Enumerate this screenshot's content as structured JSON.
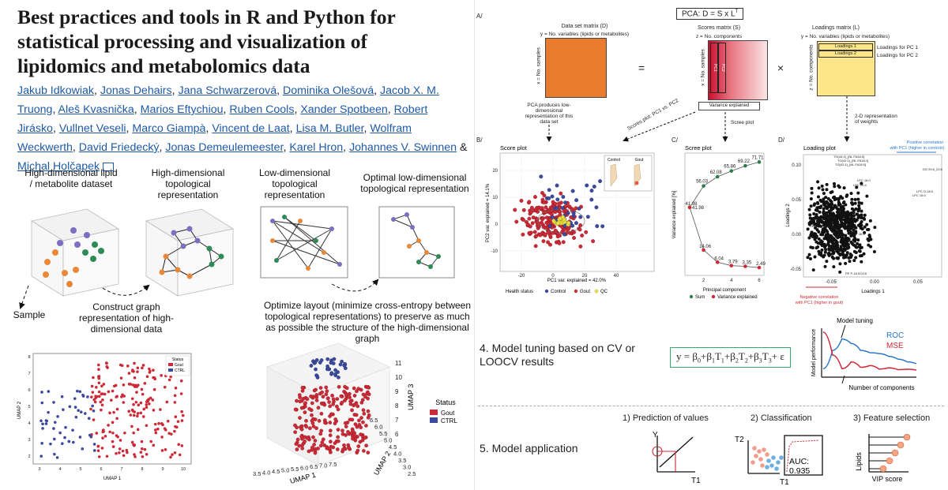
{
  "paper": {
    "title": "Best practices and tools in R and Python for statistical processing and visualization of lipidomics and metabolomics data",
    "authors": [
      "Jakub Idkowiak",
      "Jonas Dehairs",
      "Jana Schwarzerová",
      "Dominika Olešová",
      "Jacob X. M. Truong",
      "Aleš Kvasnička",
      "Marios Eftychiou",
      "Ruben Cools",
      "Xander Spotbeen",
      "Robert Jirásko",
      "Vullnet Veseli",
      "Marco Giampà",
      "Vincent de Laat",
      "Lisa M. Butler",
      "Wolfram Weckwerth",
      "David Friedecký",
      "Jonas Demeulemeester",
      "Karel Hron",
      "Johannes V. Swinnen",
      "Michal Holčapek"
    ],
    "and_text": "&"
  },
  "left_figure": {
    "steps": [
      "High-dimensional lipid / metabolite dataset",
      "High-dimensional topological representation",
      "Low-dimensional topological representation",
      "Optimal low-dimensional topological representation"
    ],
    "sample_label": "Sample",
    "construct_label": "Construct graph representation of high-dimensional data",
    "optimize_label": "Optimize layout (minimize cross-entropy between topological representations) to preserve as much as possible the structure of the high-dimensional graph",
    "umap2d": {
      "legend_title": "Status",
      "legend": [
        "Gout",
        "CTRL"
      ],
      "xlabel": "UMAP 1",
      "ylabel": "UMAP 2",
      "xticks": [
        "3",
        "4",
        "5",
        "6",
        "7",
        "8",
        "9",
        "10"
      ],
      "yticks": [
        "8",
        "7",
        "6",
        "5",
        "4",
        "3",
        "2"
      ]
    },
    "umap3d": {
      "legend_title": "Status",
      "legend": [
        "Gout",
        "CTRL"
      ],
      "xlabel": "UMAP 1",
      "ylabel": "UMAP 2",
      "zlabel": "UMAP 3",
      "xticks": [
        "3.5",
        "4.0",
        "4.5",
        "5.0",
        "5.5",
        "6.0",
        "6.5",
        "7.0",
        "7.5"
      ],
      "yticks": [
        "6.5",
        "6.0",
        "5.5",
        "5.0",
        "4.5",
        "4.0",
        "3.5",
        "3.0",
        "2.5"
      ],
      "zticks": [
        "11",
        "10",
        "9",
        "8",
        "7",
        "6"
      ]
    }
  },
  "right_figure": {
    "panel_a": "A/",
    "pca_formula": "PCA: D = S x L",
    "pca_sup": "T",
    "data_matrix_title": "Data set matrix (D)",
    "data_matrix_y": "y = No. variables (lipids or metabolites)",
    "data_matrix_x": "x = No. samples",
    "equals": "=",
    "times": "×",
    "scores_title": "Scores matrix (S)",
    "scores_z": "z = No. components",
    "scores_x": "x = No. samples",
    "pc_labels": [
      "PC1",
      "PC2"
    ],
    "variance_label": "Variance explained",
    "loadings_title": "Loadings matrix (L)",
    "loadings_y": "y = No. variables (lipids or metabolites)",
    "loadings_rows": [
      "Loadings 1",
      "Loadings 2"
    ],
    "loadings_for": [
      "Loadings for PC 1",
      "Loadings for PC 2"
    ],
    "loadings_z": "z = No. components",
    "pca_produces": "PCA produces low-dimensional representation of this data set",
    "scores_plot_arrow": "Scores plot: PC1 vs. PC2",
    "scree_arrow": "Scree plot",
    "weights_arrow": "2-D representation of weights",
    "panel_b": "B/",
    "score_plot": {
      "title": "Score plot",
      "xlabel": "PC1 var. explained = 42.0%",
      "ylabel": "PC2 var. explained = 14.1%",
      "xticks": [
        "-20",
        "0",
        "20",
        "40"
      ],
      "yticks": [
        "20",
        "10",
        "0",
        "-10"
      ],
      "inset": [
        "Control",
        "Gout"
      ],
      "legend_title": "Health status",
      "legend": [
        "Control",
        "Gout",
        "QC"
      ]
    },
    "panel_c": "C/",
    "scree": {
      "title": "Scree plot",
      "xlabel": "Principal component",
      "ylabel": "Variance explained [%]",
      "xticks": [
        "2",
        "4",
        "6"
      ]
    },
    "panel_d": "D/",
    "loading_plot": {
      "title": "Loading plot",
      "xlabel": "Loadings 1",
      "ylabel": "Loadings 2",
      "xticks": [
        "-0.05",
        "0.00",
        "0.05"
      ],
      "yticks": [
        "0.10",
        "0.05",
        "0.00",
        "-0.05"
      ],
      "pos_note": "Positive correlation with PC1 (higher in controls)",
      "neg_note": "Negative correlation with PC1 (higher in gout)",
      "point_labels": [
        "TG(44:2)_[NL FA16:0]",
        "TG(42:1)_[NL FA18:1]",
        "TG(42:1)_[NL FA16:0]",
        "LPC 18:0",
        "LPC 20:4",
        "DG 20:6_22:6",
        "LPC O-18:0",
        "LPC 16:0",
        "PE 16:0_20:4",
        "PC 36:4",
        "PE P-16:0/22:6"
      ]
    },
    "model_tuning_text": "4. Model tuning based on CV or LOOCV results",
    "equation": {
      "y": "y",
      "eq": " = ",
      "b0": "β",
      "s0": "0",
      "plus": "+",
      "terms": [
        [
          "β",
          "1",
          "T",
          "1"
        ],
        [
          "β",
          "2",
          "T",
          "2"
        ],
        [
          "β",
          "3",
          "T",
          "3"
        ]
      ],
      "eps": "+ ε"
    },
    "tuning_plot": {
      "title": "Model tuning",
      "ylabel": "Model performance",
      "xlabel": "Number of components",
      "roc": "ROC",
      "mse": "MSE"
    },
    "model_application": "5. Model application",
    "pred_title": "1) Prediction of values",
    "pred_y": "Y",
    "pred_t": "T1",
    "class_title": "2) Classification",
    "class_t2": "T2",
    "class_t1": "T1",
    "auc_label": "AUC:",
    "auc_value": "0.935",
    "feat_title": "3) Feature selection",
    "feat_y": "Lipids",
    "feat_x": "VIP score"
  },
  "chart_data": [
    {
      "type": "line",
      "title": "Scree plot",
      "xlabel": "Principal component",
      "ylabel": "Variance explained [%]",
      "series": [
        {
          "name": "Sum",
          "x": [
            1,
            2,
            3,
            4,
            5,
            6
          ],
          "values": [
            41.98,
            56.03,
            62.08,
            65.86,
            69.22,
            71.71
          ]
        },
        {
          "name": "Variance explained",
          "x": [
            1,
            2,
            3,
            4,
            5,
            6
          ],
          "values": [
            41.98,
            14.06,
            6.04,
            3.79,
            3.35,
            2.49
          ]
        }
      ],
      "data_labels": [
        "41.98",
        "56.03",
        "62.08",
        "65.86",
        "69.22",
        "71.71",
        "14.06",
        "6.04",
        "3.79",
        "3.35",
        "2.49"
      ],
      "ylim": [
        0,
        75
      ],
      "xlim": [
        1,
        6
      ]
    },
    {
      "type": "line",
      "title": "Model tuning",
      "xlabel": "Number of components",
      "ylabel": "Model performance",
      "series": [
        {
          "name": "ROC",
          "x": [
            0,
            1,
            2,
            3,
            4,
            5,
            6,
            7,
            8,
            9,
            10
          ],
          "values": [
            0.15,
            0.55,
            0.8,
            0.7,
            0.55,
            0.5,
            0.48,
            0.42,
            0.36,
            0.3,
            0.26
          ]
        },
        {
          "name": "MSE",
          "x": [
            0,
            1,
            2,
            3,
            4,
            5,
            6,
            7,
            8,
            9,
            10
          ],
          "values": [
            0.95,
            0.45,
            0.15,
            0.3,
            0.18,
            0.22,
            0.14,
            0.17,
            0.13,
            0.14,
            0.12
          ]
        }
      ],
      "ylim": [
        0,
        1
      ]
    }
  ],
  "colors": {
    "gout": "#cc2a36",
    "ctrl": "#3b4a9c",
    "qc": "#e8e040",
    "orange": "#e8883a",
    "green": "#2e8b57",
    "link": "#1f5aa6",
    "yellow": "#fde58a"
  }
}
